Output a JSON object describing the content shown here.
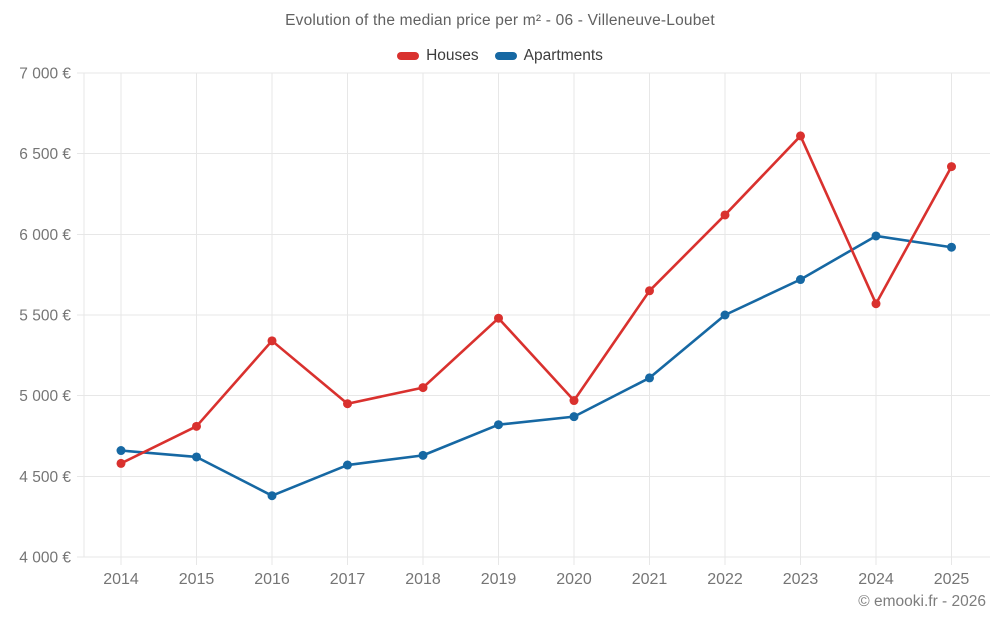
{
  "header": {
    "title": "Evolution of the median price per m² - 06 - Villeneuve-Loubet"
  },
  "footer": {
    "credit": "© emooki.fr - 2026"
  },
  "chart_data": {
    "type": "line",
    "title": "Evolution of the median price per m² - 06 - Villeneuve-Loubet",
    "categories": [
      "2014",
      "2015",
      "2016",
      "2017",
      "2018",
      "2019",
      "2020",
      "2021",
      "2022",
      "2023",
      "2024",
      "2025"
    ],
    "series": [
      {
        "name": "Houses",
        "color": "#d9312e",
        "values": [
          4580,
          4810,
          5340,
          4950,
          5050,
          5480,
          4970,
          5650,
          6120,
          6610,
          5570,
          6420
        ]
      },
      {
        "name": "Apartments",
        "color": "#1668a3",
        "values": [
          4660,
          4620,
          4380,
          4570,
          4630,
          4820,
          4870,
          5110,
          5500,
          5720,
          5990,
          5920
        ]
      }
    ],
    "ylim": [
      4000,
      7000
    ],
    "ytick_step": 500,
    "yticks": [
      {
        "value": 4000,
        "label": "4 000 €"
      },
      {
        "value": 4500,
        "label": "4 500 €"
      },
      {
        "value": 5000,
        "label": "5 000 €"
      },
      {
        "value": 5500,
        "label": "5 500 €"
      },
      {
        "value": 6000,
        "label": "6 000 €"
      },
      {
        "value": 6500,
        "label": "6 500 €"
      },
      {
        "value": 7000,
        "label": "7 000 €"
      }
    ],
    "xlabel": "",
    "ylabel": "",
    "grid": true,
    "legend_position": "top",
    "marker": "circle",
    "colors": {
      "grid": "#e7e7e7",
      "axis_text": "#757575",
      "title_text": "#616161",
      "legend_text": "#3d3d3d",
      "background": "#ffffff"
    }
  }
}
